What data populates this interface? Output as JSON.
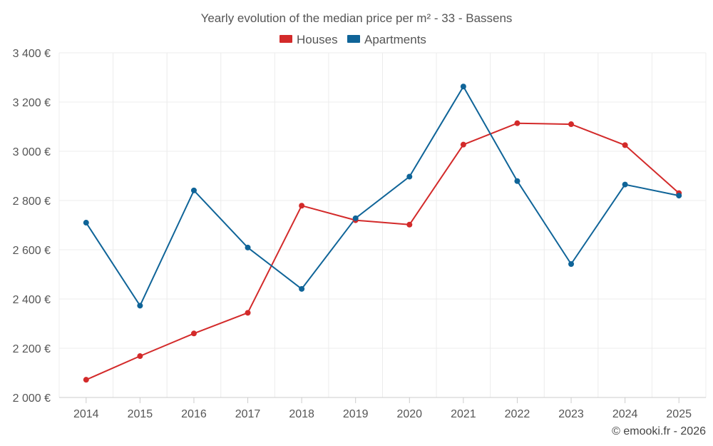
{
  "chart_data": {
    "type": "line",
    "title": "Yearly evolution of the median price per m² - 33 - Bassens",
    "categories": [
      "2014",
      "2015",
      "2016",
      "2017",
      "2018",
      "2019",
      "2020",
      "2021",
      "2022",
      "2023",
      "2024",
      "2025"
    ],
    "series": [
      {
        "name": "Houses",
        "color": "#d32a2a",
        "values": [
          2072,
          2168,
          2260,
          2344,
          2779,
          2720,
          2702,
          3027,
          3114,
          3110,
          3025,
          2830
        ]
      },
      {
        "name": "Apartments",
        "color": "#0f6498",
        "values": [
          2710,
          2373,
          2841,
          2609,
          2441,
          2728,
          2897,
          3263,
          2879,
          2542,
          2865,
          2820
        ]
      }
    ],
    "ylim": [
      2000,
      3400
    ],
    "yticks": [
      2000,
      2200,
      2400,
      2600,
      2800,
      3000,
      3200,
      3400
    ],
    "ytick_labels": [
      "2 000 €",
      "2 200 €",
      "2 400 €",
      "2 600 €",
      "2 800 €",
      "3 000 €",
      "3 200 €",
      "3 400 €"
    ],
    "xlabel": "",
    "ylabel": "",
    "grid": true,
    "legend_position": "top-center"
  },
  "credit": "© emooki.fr - 2026"
}
